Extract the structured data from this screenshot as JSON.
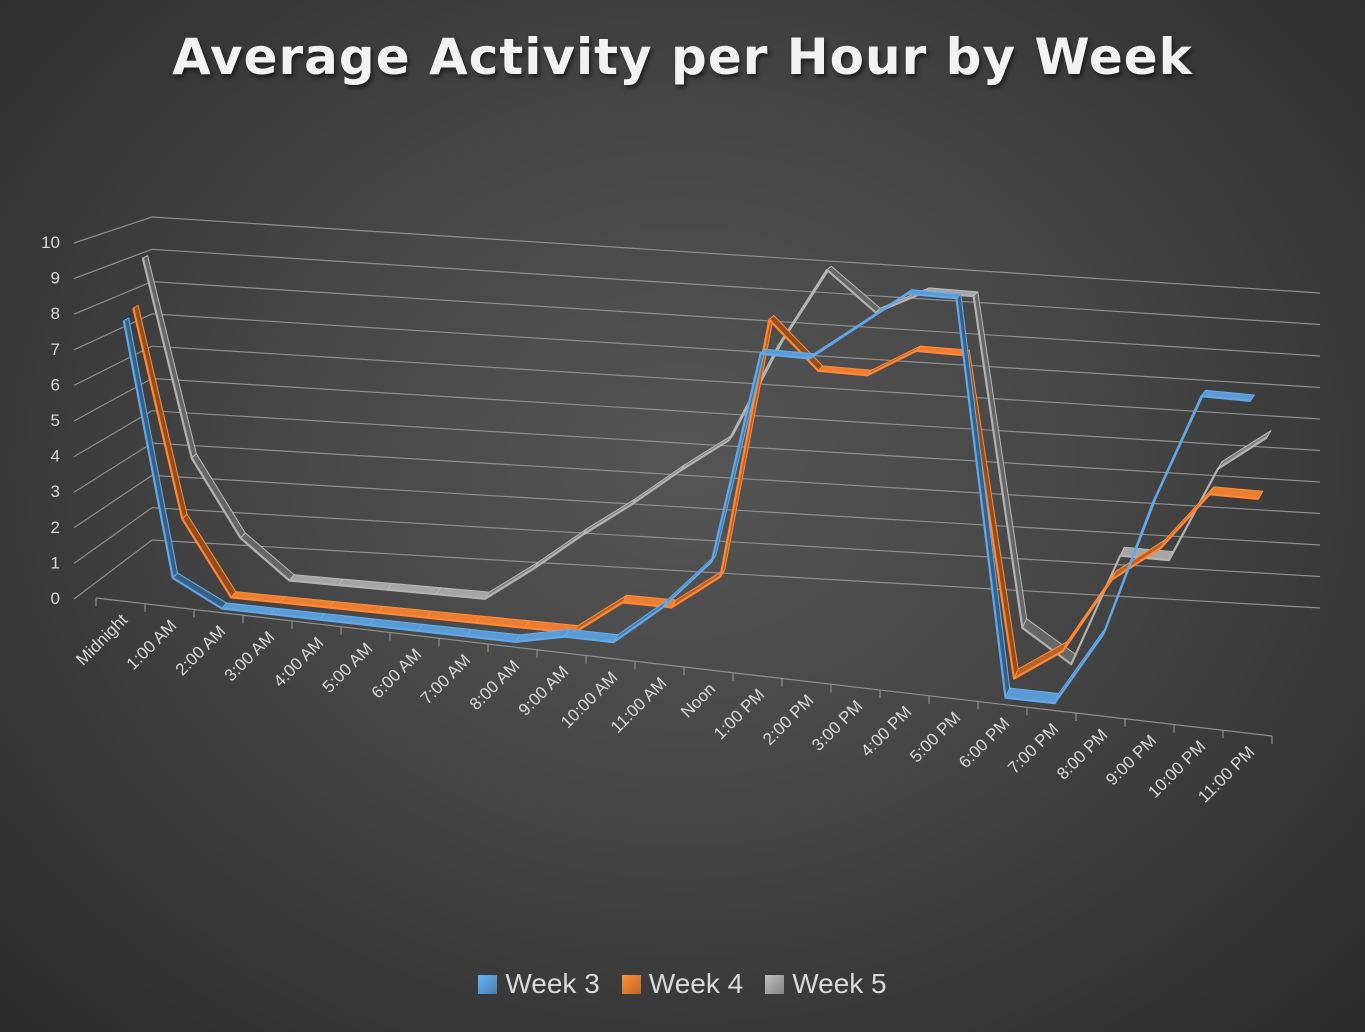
{
  "chart_data": {
    "type": "line",
    "variant": "3d-line",
    "title": "Average Activity per Hour by Week",
    "xlabel": "",
    "ylabel": "",
    "ylim": [
      0,
      10
    ],
    "yticks": [
      0,
      1,
      2,
      3,
      4,
      5,
      6,
      7,
      8,
      9,
      10
    ],
    "grid": true,
    "legend": "bottom",
    "categories": [
      "Midnight",
      "1:00 AM",
      "2:00 AM",
      "3:00 AM",
      "4:00 AM",
      "5:00 AM",
      "6:00 AM",
      "7:00 AM",
      "8:00 AM",
      "9:00 AM",
      "10:00 AM",
      "11:00 AM",
      "Noon",
      "1:00 PM",
      "2:00 PM",
      "3:00 PM",
      "4:00 PM",
      "5:00 PM",
      "6:00 PM",
      "7:00 PM",
      "8:00 PM",
      "9:00 PM",
      "10:00 PM",
      "11:00 PM"
    ],
    "series": [
      {
        "name": "Week 3",
        "color": "#5b9bd5",
        "values": [
          7.8,
          0.7,
          0.0,
          0.0,
          0.0,
          0.0,
          0.0,
          0.0,
          0.0,
          0.3,
          0.3,
          1.4,
          2.8,
          8.6,
          8.6,
          9.6,
          10.6,
          10.6,
          0.0,
          0.0,
          2.0,
          5.6,
          8.6,
          8.6
        ]
      },
      {
        "name": "Week 4",
        "color": "#ed7d31",
        "values": [
          8.0,
          2.1,
          0.0,
          0.0,
          0.0,
          0.0,
          0.0,
          0.0,
          0.0,
          0.0,
          1.0,
          1.0,
          2.0,
          9.3,
          8.0,
          8.0,
          8.8,
          8.8,
          0.0,
          0.9,
          3.0,
          4.0,
          5.6,
          5.6
        ]
      },
      {
        "name": "Week 5",
        "color": "#a5a5a5",
        "values": [
          9.3,
          3.6,
          1.4,
          0.3,
          0.3,
          0.3,
          0.3,
          0.3,
          1.3,
          2.4,
          3.4,
          4.5,
          5.5,
          8.3,
          10.6,
          9.5,
          10.2,
          10.2,
          0.9,
          0.0,
          3.2,
          3.2,
          5.9,
          6.9
        ]
      }
    ]
  }
}
